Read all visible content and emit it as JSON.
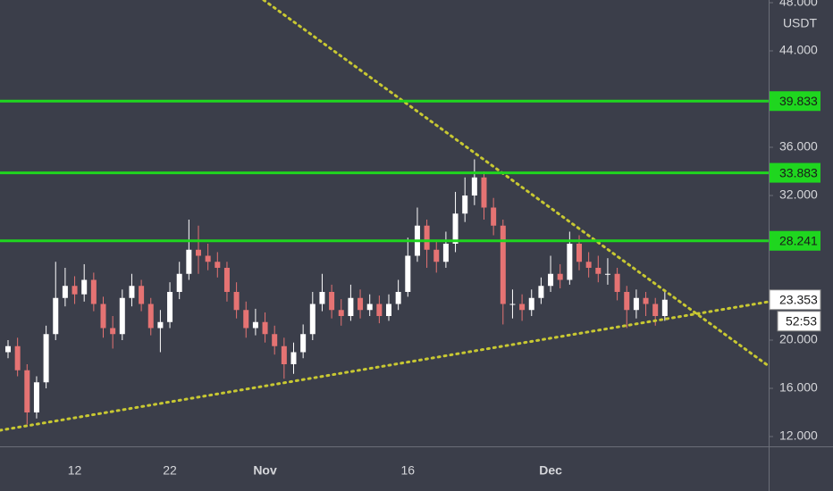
{
  "chart_data": {
    "type": "candlestick",
    "categories": [
      null,
      null,
      null,
      null,
      null,
      null,
      null,
      "12",
      null,
      null,
      null,
      null,
      null,
      null,
      null,
      null,
      null,
      "22",
      null,
      null,
      null,
      null,
      null,
      null,
      null,
      null,
      null,
      "Nov",
      null,
      null,
      null,
      null,
      null,
      null,
      null,
      null,
      null,
      null,
      null,
      null,
      null,
      null,
      "16",
      null,
      null,
      null,
      null,
      null,
      null,
      null,
      null,
      null,
      null,
      null,
      null,
      null,
      null,
      "Dec",
      null,
      null,
      null,
      null,
      null,
      null,
      null,
      null,
      null,
      null,
      null,
      null
    ],
    "open": [
      19.0,
      19.5,
      17.5,
      14.0,
      16.5,
      20.5,
      23.5,
      24.5,
      23.8,
      25.0,
      23.0,
      21.0,
      20.5,
      23.5,
      24.5,
      23.0,
      21.0,
      21.5,
      24.0,
      25.5,
      27.5,
      27.0,
      26.5,
      26.0,
      24.0,
      22.5,
      21.0,
      21.5,
      20.5,
      19.5,
      18.0,
      19.0,
      20.5,
      23.0,
      24.0,
      22.5,
      22.0,
      23.5,
      22.5,
      23.0,
      22.0,
      23.0,
      24.0,
      27.0,
      29.5,
      27.5,
      26.5,
      28.0,
      30.5,
      32.0,
      33.5,
      31.0,
      29.5,
      23.0,
      23.0,
      22.5,
      23.5,
      24.5,
      25.5,
      25.0,
      28.0,
      26.5,
      26.0,
      25.5,
      25.5,
      24.0,
      22.5,
      23.5,
      23.0,
      22.0
    ],
    "high": [
      20.0,
      20.2,
      18.0,
      17.0,
      21.2,
      26.5,
      26.0,
      25.3,
      26.3,
      25.6,
      23.6,
      22.0,
      24.2,
      25.5,
      25.0,
      23.5,
      22.5,
      24.8,
      26.5,
      30.0,
      29.5,
      28.0,
      27.3,
      26.5,
      24.8,
      23.2,
      22.6,
      22.3,
      21.2,
      20.2,
      19.8,
      21.3,
      24.0,
      25.5,
      24.6,
      23.4,
      24.6,
      24.2,
      23.8,
      23.7,
      23.8,
      25.0,
      28.5,
      31.0,
      30.0,
      28.3,
      29.0,
      32.3,
      33.5,
      35.0,
      34.0,
      31.8,
      30.0,
      24.2,
      23.8,
      24.2,
      25.2,
      27.0,
      26.3,
      29.0,
      28.7,
      27.3,
      27.0,
      26.8,
      26.0,
      24.5,
      24.2,
      24.0,
      23.5,
      24.0
    ],
    "low": [
      18.5,
      17.0,
      13.0,
      13.5,
      16.0,
      20.0,
      22.8,
      23.0,
      23.2,
      22.4,
      20.2,
      19.3,
      20.0,
      22.8,
      22.4,
      20.4,
      19.0,
      21.0,
      23.4,
      25.0,
      25.5,
      25.8,
      25.2,
      23.2,
      21.8,
      20.2,
      20.4,
      19.8,
      18.8,
      16.8,
      17.2,
      18.5,
      20.0,
      22.4,
      21.8,
      21.2,
      21.6,
      21.8,
      22.0,
      21.4,
      21.6,
      22.5,
      23.6,
      26.5,
      26.0,
      25.6,
      26.0,
      27.3,
      29.8,
      31.2,
      30.0,
      28.7,
      21.3,
      21.8,
      21.6,
      22.0,
      23.0,
      24.0,
      24.3,
      24.6,
      25.8,
      25.2,
      24.8,
      24.6,
      23.3,
      21.0,
      21.8,
      22.0,
      21.2,
      21.6
    ],
    "close": [
      19.5,
      17.5,
      14.0,
      16.5,
      20.5,
      23.5,
      24.5,
      23.8,
      25.0,
      23.0,
      21.0,
      20.5,
      23.5,
      24.5,
      23.0,
      21.0,
      21.5,
      24.0,
      25.5,
      27.5,
      27.0,
      26.5,
      26.0,
      24.0,
      22.5,
      21.0,
      21.5,
      20.5,
      19.5,
      18.0,
      19.0,
      20.5,
      23.0,
      24.0,
      22.5,
      22.0,
      23.5,
      22.5,
      23.0,
      22.0,
      23.0,
      24.0,
      27.0,
      29.5,
      27.5,
      26.5,
      28.0,
      30.5,
      32.0,
      33.5,
      31.0,
      29.5,
      23.0,
      23.0,
      22.5,
      23.5,
      24.5,
      25.5,
      25.0,
      28.0,
      26.5,
      26.0,
      25.5,
      25.5,
      24.0,
      22.5,
      23.5,
      23.0,
      22.0,
      23.353
    ],
    "up_color": "#ffffff",
    "down_color": "#e57373",
    "levels": [
      39.833,
      33.883,
      28.241
    ],
    "level_color": "#1fd61f",
    "y_label": "USDT",
    "countdown": "52:53",
    "ylim": [
      11.185,
      48.222
    ],
    "yticks": [
      {
        "value": 12,
        "label": "12.000"
      },
      {
        "value": 16,
        "label": "16.000"
      },
      {
        "value": 20,
        "label": "20.000"
      },
      {
        "value": 32,
        "label": "32.000"
      },
      {
        "value": 36,
        "label": "36.000"
      },
      {
        "value": 44,
        "label": "44.000"
      },
      {
        "value": 48,
        "label": "48.000"
      }
    ]
  }
}
